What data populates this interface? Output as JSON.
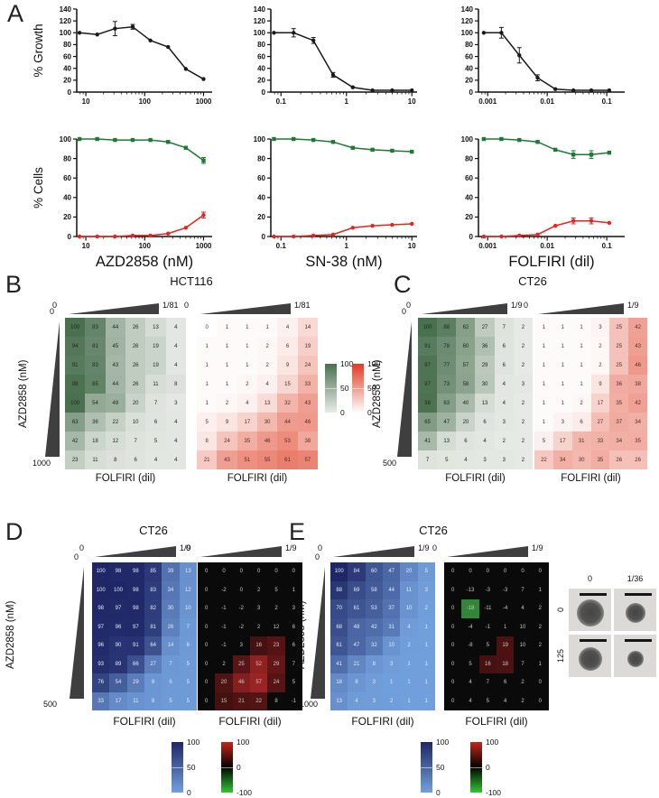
{
  "panels": {
    "A": {
      "label": "A"
    },
    "B": {
      "label": "B",
      "title": "HCT116",
      "xlabel": "FOLFIRI (dil)",
      "ylabel": "AZD2858 (nM)",
      "x_wedge": {
        "start": "0",
        "end": "1/81"
      },
      "y_wedge": {
        "start": "0",
        "end": "1000"
      }
    },
    "C": {
      "label": "C",
      "title": "CT26",
      "xlabel": "FOLFIRI (dil)",
      "ylabel": "AZD2858 (nM)",
      "x_wedge": {
        "start": "0",
        "end": "1/9"
      },
      "y_wedge": {
        "start": "0",
        "end": "500"
      }
    },
    "D": {
      "label": "D",
      "title": "CT26",
      "xlabel": "FOLFIRI (dil)",
      "ylabel": "AZD2858 (nM)",
      "x_wedge": {
        "start": "0",
        "end": "1/9"
      },
      "y_wedge": {
        "start": "0",
        "end": "500"
      }
    },
    "E": {
      "label": "E",
      "title": "CT26",
      "xlabel": "FOLFIRI (dil)",
      "ylabel": "AZD2858 (nM)",
      "x_wedge": {
        "start": "0",
        "end": "1/9"
      },
      "y_wedge": {
        "start": "0",
        "end": "1000"
      },
      "spheroids": {
        "col_labels": [
          "0",
          "1/36"
        ],
        "row_labels": [
          "0",
          "125"
        ],
        "radii": [
          [
            15,
            11
          ],
          [
            13,
            9
          ]
        ]
      }
    }
  },
  "colors": {
    "line_black": "#1a1a1a",
    "line_green": "#1e7a33",
    "line_red": "#e8231e",
    "heat_green_lo": "#e9ece7",
    "heat_green_hi": "#49704f",
    "heat_red_lo": "#fefefe",
    "heat_red_hi": "#e03a20",
    "heat_blue_lo": "#72a0dc",
    "heat_blue_hi": "#1f2766",
    "synergy_bg": "#0a0a0a",
    "synergy_red": "#c0281a",
    "synergy_green": "#35c435",
    "wedge": "#3f3f3f"
  },
  "colorbars": {
    "growth": {
      "ticks": [
        "100",
        "50",
        "0"
      ]
    },
    "death": {
      "ticks": [
        "100",
        "50",
        "0"
      ]
    },
    "viability": {
      "ticks": [
        "100",
        "50",
        "0"
      ]
    },
    "synergy": {
      "ticks": [
        "100",
        "0",
        "-100"
      ]
    }
  },
  "chart_data": [
    {
      "id": "a1",
      "type": "line",
      "xscale": "log",
      "xlim": [
        7,
        1400
      ],
      "xticks": [
        10,
        100,
        1000
      ],
      "ylim": [
        0,
        140
      ],
      "ystep": 20,
      "ylabel": "% Growth",
      "series": [
        {
          "name": "growth",
          "color": "#1a1a1a",
          "marker": "circle",
          "x": [
            7.8,
            15.6,
            31.3,
            62.5,
            125,
            250,
            500,
            1000
          ],
          "y": [
            100,
            97,
            107,
            110,
            87,
            76,
            39,
            22
          ],
          "err": [
            0,
            0,
            12,
            4,
            0,
            0,
            0,
            0
          ]
        }
      ]
    },
    {
      "id": "a2",
      "type": "line",
      "xscale": "log",
      "xlim": [
        0.07,
        12
      ],
      "xticks": [
        0.1,
        1,
        10
      ],
      "ylim": [
        0,
        140
      ],
      "ystep": 20,
      "series": [
        {
          "name": "growth",
          "color": "#1a1a1a",
          "marker": "circle",
          "x": [
            0.078,
            0.156,
            0.313,
            0.625,
            1.25,
            2.5,
            5,
            10
          ],
          "y": [
            100,
            100,
            87,
            29,
            8,
            3,
            3,
            3
          ],
          "err": [
            0,
            7,
            5,
            4,
            0,
            0,
            0,
            0
          ]
        }
      ]
    },
    {
      "id": "a3",
      "type": "line",
      "xscale": "log",
      "xlim": [
        0.0007,
        0.2
      ],
      "xticks": [
        0.001,
        0.01,
        0.1
      ],
      "ylim": [
        0,
        140
      ],
      "ystep": 20,
      "series": [
        {
          "name": "growth",
          "color": "#1a1a1a",
          "marker": "circle",
          "x": [
            0.00086,
            0.0017,
            0.0034,
            0.0069,
            0.0137,
            0.0275,
            0.055,
            0.11
          ],
          "y": [
            100,
            100,
            62,
            24,
            5,
            3,
            3,
            3
          ],
          "err": [
            0,
            9,
            13,
            5,
            0,
            0,
            0,
            0
          ]
        }
      ]
    },
    {
      "id": "a4",
      "type": "line",
      "xscale": "log",
      "xlim": [
        7,
        1400
      ],
      "xticks": [
        10,
        100,
        1000
      ],
      "ylim": [
        0,
        100
      ],
      "ystep": 20,
      "ylabel": "% Cells",
      "xlabel": "AZD2858 (nM)",
      "series": [
        {
          "name": "live",
          "color": "#1e7a33",
          "marker": "square",
          "x": [
            7.8,
            15.6,
            31.3,
            62.5,
            125,
            250,
            500,
            1000
          ],
          "y": [
            100,
            100,
            99,
            99,
            99,
            97,
            91,
            78
          ],
          "err": [
            0,
            0,
            0,
            0,
            0,
            0,
            0,
            3
          ]
        },
        {
          "name": "dead",
          "color": "#e8231e",
          "marker": "circle",
          "x": [
            7.8,
            15.6,
            31.3,
            62.5,
            125,
            250,
            500,
            1000
          ],
          "y": [
            0,
            0,
            0,
            1,
            1,
            3,
            9,
            22
          ],
          "err": [
            0,
            0,
            0,
            0,
            0,
            0,
            0,
            3
          ]
        }
      ]
    },
    {
      "id": "a5",
      "type": "line",
      "xscale": "log",
      "xlim": [
        0.07,
        12
      ],
      "xticks": [
        0.1,
        1,
        10
      ],
      "ylim": [
        0,
        100
      ],
      "ystep": 20,
      "xlabel": "SN-38 (nM)",
      "series": [
        {
          "name": "live",
          "color": "#1e7a33",
          "marker": "square",
          "x": [
            0.078,
            0.156,
            0.313,
            0.625,
            1.25,
            2.5,
            5,
            10
          ],
          "y": [
            100,
            100,
            99,
            97,
            91,
            89,
            88,
            87
          ],
          "err": [
            0,
            0,
            0,
            0,
            0,
            0,
            0,
            0
          ]
        },
        {
          "name": "dead",
          "color": "#e8231e",
          "marker": "circle",
          "x": [
            0.078,
            0.156,
            0.313,
            0.625,
            1.25,
            2.5,
            5,
            10
          ],
          "y": [
            0,
            0,
            1,
            2,
            9,
            11,
            12,
            13
          ],
          "err": [
            0,
            0,
            0,
            0,
            0,
            0,
            0,
            0
          ]
        }
      ]
    },
    {
      "id": "a6",
      "type": "line",
      "xscale": "log",
      "xlim": [
        0.0007,
        0.2
      ],
      "xticks": [
        0.001,
        0.01,
        0.1
      ],
      "ylim": [
        0,
        100
      ],
      "ystep": 20,
      "xlabel": "FOLFIRI (dil)",
      "series": [
        {
          "name": "live",
          "color": "#1e7a33",
          "marker": "square",
          "x": [
            0.00086,
            0.0017,
            0.0034,
            0.0069,
            0.0137,
            0.0275,
            0.055,
            0.11
          ],
          "y": [
            100,
            100,
            99,
            97,
            89,
            84,
            84,
            86
          ],
          "err": [
            0,
            0,
            0,
            0,
            0,
            4,
            4,
            0
          ]
        },
        {
          "name": "dead",
          "color": "#e8231e",
          "marker": "circle",
          "x": [
            0.00086,
            0.0017,
            0.0034,
            0.0069,
            0.0137,
            0.0275,
            0.055,
            0.11
          ],
          "y": [
            0,
            0,
            1,
            2,
            11,
            16,
            16,
            14
          ],
          "err": [
            0,
            0,
            0,
            0,
            0,
            3,
            3,
            0
          ]
        }
      ]
    },
    {
      "id": "b_growth",
      "type": "heatmap",
      "colormap": "green",
      "rows": 8,
      "cols": 6,
      "values": [
        [
          100,
          83,
          44,
          26,
          13,
          4
        ],
        [
          94,
          81,
          45,
          26,
          19,
          4
        ],
        [
          91,
          83,
          43,
          26,
          19,
          4
        ],
        [
          98,
          85,
          44,
          26,
          11,
          8
        ],
        [
          100,
          54,
          49,
          20,
          7,
          3
        ],
        [
          63,
          36,
          22,
          10,
          6,
          4
        ],
        [
          42,
          18,
          12,
          7,
          5,
          4
        ],
        [
          23,
          11,
          8,
          6,
          4,
          4
        ]
      ]
    },
    {
      "id": "b_death",
      "type": "heatmap",
      "colormap": "red",
      "rows": 8,
      "cols": 6,
      "values": [
        [
          0,
          1,
          1,
          1,
          4,
          14
        ],
        [
          1,
          1,
          1,
          2,
          6,
          19
        ],
        [
          1,
          1,
          1,
          2,
          9,
          24
        ],
        [
          1,
          1,
          2,
          4,
          15,
          33
        ],
        [
          1,
          2,
          4,
          13,
          32,
          43
        ],
        [
          5,
          9,
          17,
          30,
          44,
          46
        ],
        [
          8,
          24,
          35,
          46,
          53,
          38
        ],
        [
          21,
          43,
          51,
          55,
          61,
          57
        ]
      ]
    },
    {
      "id": "c_growth",
      "type": "heatmap",
      "colormap": "green",
      "rows": 8,
      "cols": 6,
      "values": [
        [
          100,
          88,
          62,
          27,
          7,
          2
        ],
        [
          91,
          78,
          60,
          36,
          6,
          2
        ],
        [
          97,
          77,
          57,
          29,
          6,
          2
        ],
        [
          97,
          73,
          58,
          30,
          4,
          3
        ],
        [
          98,
          63,
          40,
          13,
          4,
          2
        ],
        [
          65,
          47,
          20,
          6,
          3,
          2
        ],
        [
          41,
          13,
          6,
          4,
          2,
          2
        ],
        [
          7,
          5,
          4,
          3,
          3,
          2
        ]
      ]
    },
    {
      "id": "c_death",
      "type": "heatmap",
      "colormap": "red",
      "rows": 8,
      "cols": 6,
      "values": [
        [
          1,
          1,
          1,
          3,
          25,
          42
        ],
        [
          1,
          1,
          1,
          2,
          25,
          43
        ],
        [
          1,
          1,
          1,
          2,
          25,
          46
        ],
        [
          1,
          1,
          1,
          9,
          36,
          38
        ],
        [
          1,
          1,
          2,
          17,
          35,
          42
        ],
        [
          1,
          3,
          6,
          27,
          37,
          34
        ],
        [
          5,
          17,
          31,
          33,
          34,
          35
        ],
        [
          22,
          34,
          30,
          35,
          26,
          26
        ]
      ]
    },
    {
      "id": "d_viability",
      "type": "heatmap",
      "colormap": "blue",
      "rows": 8,
      "cols": 6,
      "values": [
        [
          100,
          98,
          98,
          85,
          39,
          13
        ],
        [
          100,
          100,
          98,
          83,
          34,
          12
        ],
        [
          98,
          97,
          98,
          82,
          30,
          10
        ],
        [
          97,
          96,
          97,
          81,
          26,
          7
        ],
        [
          96,
          90,
          91,
          64,
          14,
          6
        ],
        [
          93,
          89,
          66,
          27,
          7,
          5
        ],
        [
          76,
          54,
          29,
          8,
          6,
          5
        ],
        [
          33,
          17,
          11,
          8,
          5,
          5
        ]
      ]
    },
    {
      "id": "d_synergy",
      "type": "heatmap",
      "colormap": "synergy",
      "rows": 8,
      "cols": 6,
      "values": [
        [
          0,
          0,
          0,
          0,
          0,
          0
        ],
        [
          0,
          -2,
          0,
          2,
          5,
          1
        ],
        [
          0,
          -1,
          -2,
          3,
          2,
          3
        ],
        [
          0,
          -1,
          -2,
          2,
          12,
          6
        ],
        [
          0,
          -1,
          3,
          16,
          23,
          6
        ],
        [
          0,
          2,
          25,
          52,
          29,
          7
        ],
        [
          0,
          20,
          46,
          57,
          24,
          5
        ],
        [
          0,
          15,
          21,
          22,
          8,
          -1
        ]
      ]
    },
    {
      "id": "e_viability",
      "type": "heatmap",
      "colormap": "blue",
      "rows": 8,
      "cols": 6,
      "values": [
        [
          100,
          84,
          60,
          47,
          20,
          5
        ],
        [
          88,
          69,
          58,
          44,
          11,
          3
        ],
        [
          70,
          61,
          53,
          37,
          10,
          2
        ],
        [
          68,
          48,
          42,
          31,
          4,
          1
        ],
        [
          61,
          47,
          32,
          10,
          2,
          1
        ],
        [
          41,
          21,
          8,
          3,
          1,
          1
        ],
        [
          18,
          8,
          3,
          1,
          1,
          1
        ],
        [
          13,
          4,
          3,
          2,
          1,
          1
        ]
      ]
    },
    {
      "id": "e_synergy",
      "type": "heatmap",
      "colormap": "synergy",
      "rows": 8,
      "cols": 6,
      "values": [
        [
          0,
          0,
          0,
          0,
          0,
          0
        ],
        [
          0,
          -13,
          -3,
          -3,
          7,
          1
        ],
        [
          0,
          -18,
          -11,
          -4,
          4,
          2
        ],
        [
          0,
          -4,
          -1,
          1,
          10,
          2
        ],
        [
          0,
          -8,
          5,
          19,
          10,
          2
        ],
        [
          0,
          5,
          16,
          18,
          7,
          1
        ],
        [
          0,
          4,
          7,
          6,
          2,
          0
        ],
        [
          0,
          4,
          5,
          4,
          2,
          0
        ]
      ]
    }
  ]
}
